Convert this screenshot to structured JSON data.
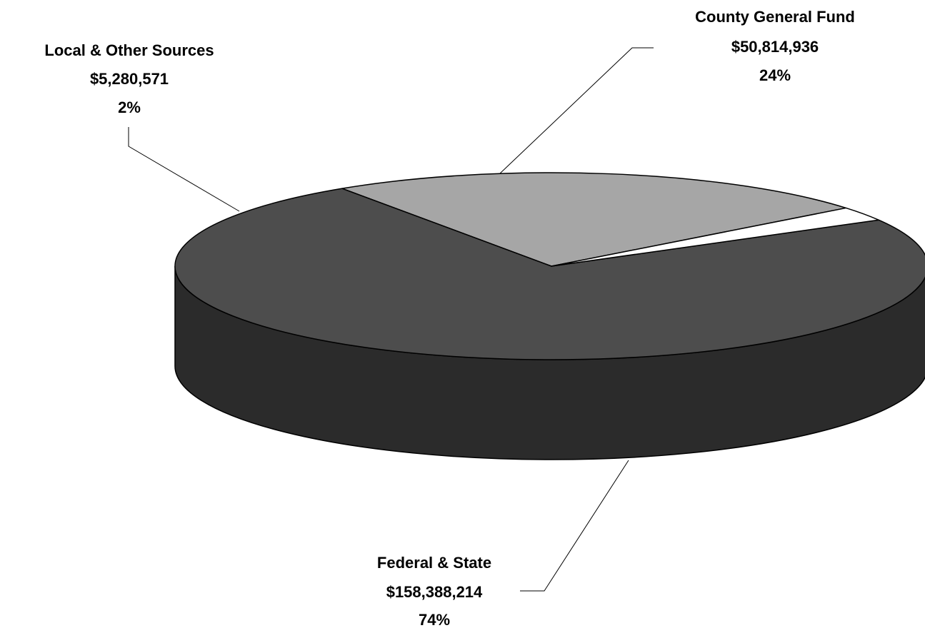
{
  "chart_data": {
    "type": "pie",
    "style": "3d",
    "slices": [
      {
        "label": "County General Fund",
        "amount": "$50,814,936",
        "percent": "24%",
        "value": 50814936,
        "color": "#a6a6a6"
      },
      {
        "label": "Federal & State",
        "amount": "$158,388,214",
        "percent": "74%",
        "value": 158388214,
        "color": "#4d4d4d"
      },
      {
        "label": "Local & Other Sources",
        "amount": "$5,280,571",
        "percent": "2%",
        "value": 5280571,
        "color": "#ffffff"
      }
    ],
    "side_color": "#2b2b2b",
    "legend": "none"
  }
}
